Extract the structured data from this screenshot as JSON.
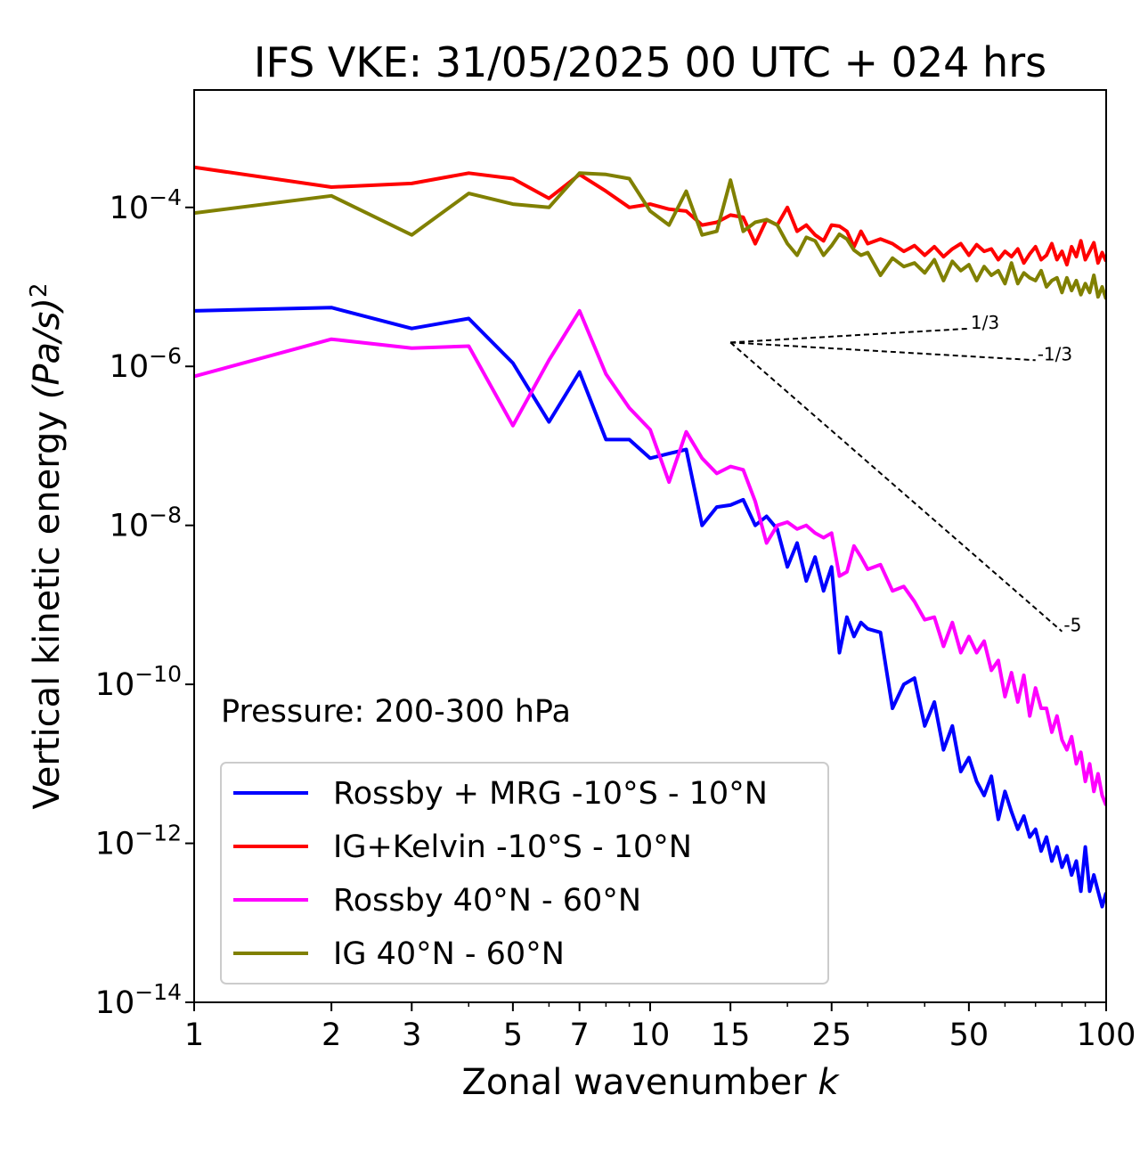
{
  "chart_data": {
    "type": "line",
    "title": "IFS VKE: 31/05/2025 00 UTC + 024 hrs",
    "xlabel": "Zonal wavenumber",
    "xlabel_italic": "k",
    "ylabel": "Vertical kinetic energy ",
    "ylabel_unit": "(Pa/s)",
    "ylabel_exp": "2",
    "x_scale": "log",
    "y_scale": "log",
    "xlim": [
      1,
      100
    ],
    "ylim": [
      1e-14,
      0.003
    ],
    "x_ticks": [
      1,
      2,
      3,
      5,
      7,
      10,
      15,
      25,
      50,
      100
    ],
    "y_ticks": [
      {
        "base": "10",
        "exp": "−14",
        "value": 1e-14
      },
      {
        "base": "10",
        "exp": "−12",
        "value": 1e-12
      },
      {
        "base": "10",
        "exp": "−10",
        "value": 1e-10
      },
      {
        "base": "10",
        "exp": "−8",
        "value": 1e-08
      },
      {
        "base": "10",
        "exp": "−6",
        "value": 1e-06
      },
      {
        "base": "10",
        "exp": "−4",
        "value": 0.0001
      }
    ],
    "annotation": "Pressure: 200-300 hPa",
    "legend_position": "lower-left",
    "grid": false,
    "reference_lines": [
      {
        "label": "1/3",
        "slope": 0.3333,
        "x_start": 15,
        "x_end": 50
      },
      {
        "label": "-1/3",
        "slope": -0.3333,
        "x_start": 15,
        "x_end": 70
      },
      {
        "label": "-5",
        "slope": -5,
        "x_start": 15,
        "x_end": 80
      }
    ],
    "reference_origin_y": 2e-06,
    "series": [
      {
        "name": "Rossby + MRG -10°S - 10°N",
        "color": "#0000ff",
        "x": [
          1,
          2,
          3,
          4,
          5,
          6,
          7,
          8,
          9,
          10,
          11,
          12,
          13,
          14,
          15,
          16,
          17,
          18,
          19,
          20,
          21,
          22,
          23,
          24,
          25,
          26,
          27,
          28,
          29,
          30,
          32,
          34,
          36,
          38,
          40,
          42,
          44,
          46,
          48,
          50,
          52,
          54,
          56,
          58,
          60,
          62,
          64,
          66,
          68,
          70,
          72,
          74,
          76,
          78,
          80,
          82,
          84,
          86,
          88,
          90,
          92,
          94,
          96,
          98,
          100
        ],
        "y": [
          5e-06,
          5.5e-06,
          3e-06,
          4e-06,
          1.1e-06,
          2e-07,
          8.5e-07,
          1.2e-07,
          1.2e-07,
          7e-08,
          8e-08,
          9e-08,
          1e-08,
          1.7e-08,
          1.8e-08,
          2.1e-08,
          1e-08,
          1.3e-08,
          9e-09,
          3e-09,
          6e-09,
          2e-09,
          4e-09,
          1.5e-09,
          3e-09,
          2.5e-10,
          7e-10,
          4e-10,
          6e-10,
          5e-10,
          4.5e-10,
          5e-11,
          1e-10,
          1.2e-10,
          3e-11,
          6e-11,
          1.5e-11,
          3e-11,
          8e-12,
          1.2e-11,
          6e-12,
          4e-12,
          7e-12,
          2e-12,
          4.5e-12,
          2.5e-12,
          1.5e-12,
          2.2e-12,
          1.2e-12,
          1.5e-12,
          8e-13,
          1.2e-12,
          6e-13,
          9e-13,
          5e-13,
          7e-13,
          4e-13,
          6e-13,
          2.5e-13,
          9e-13,
          2.5e-13,
          4e-13,
          2.5e-13,
          1.6e-13,
          2.4e-13
        ]
      },
      {
        "name": "IG+Kelvin -10°S - 10°N",
        "color": "#ff0000",
        "x": [
          1,
          2,
          3,
          4,
          5,
          6,
          7,
          8,
          9,
          10,
          11,
          12,
          13,
          14,
          15,
          16,
          17,
          18,
          19,
          20,
          21,
          22,
          23,
          24,
          25,
          26,
          27,
          28,
          29,
          30,
          32,
          34,
          36,
          38,
          40,
          42,
          44,
          46,
          48,
          50,
          52,
          54,
          56,
          58,
          60,
          62,
          64,
          66,
          68,
          70,
          72,
          74,
          76,
          78,
          80,
          82,
          84,
          86,
          88,
          90,
          92,
          94,
          96,
          98,
          100
        ],
        "y": [
          0.00032,
          0.00018,
          0.0002,
          0.00027,
          0.00023,
          0.00013,
          0.00026,
          0.00016,
          0.0001,
          0.00011,
          9.5e-05,
          9e-05,
          6e-05,
          6.5e-05,
          8e-05,
          7.5e-05,
          3.5e-05,
          7e-05,
          6e-05,
          0.0001,
          5e-05,
          6e-05,
          4.5e-05,
          3.8e-05,
          6e-05,
          5.8e-05,
          5e-05,
          3.2e-05,
          5e-05,
          3.5e-05,
          4e-05,
          3.5e-05,
          2.8e-05,
          3.3e-05,
          2.5e-05,
          3.2e-05,
          2.4e-05,
          3e-05,
          3.5e-05,
          2.5e-05,
          3.4e-05,
          2.8e-05,
          3e-05,
          2.2e-05,
          2.8e-05,
          2.4e-05,
          3e-05,
          2e-05,
          2.6e-05,
          3.2e-05,
          2.2e-05,
          2.5e-05,
          3.5e-05,
          2.2e-05,
          2.8e-05,
          1.9e-05,
          3.2e-05,
          2.4e-05,
          3.8e-05,
          2.2e-05,
          2.8e-05,
          3.6e-05,
          2e-05,
          2.7e-05,
          2.1e-05
        ]
      },
      {
        "name": "Rossby 40°N - 60°N",
        "color": "#ff00ff",
        "x": [
          1,
          2,
          3,
          4,
          5,
          6,
          7,
          8,
          9,
          10,
          11,
          12,
          13,
          14,
          15,
          16,
          17,
          18,
          19,
          20,
          21,
          22,
          23,
          24,
          25,
          26,
          27,
          28,
          29,
          30,
          32,
          34,
          36,
          38,
          40,
          42,
          44,
          46,
          48,
          50,
          52,
          54,
          56,
          58,
          60,
          62,
          64,
          66,
          68,
          70,
          72,
          74,
          76,
          78,
          80,
          82,
          84,
          86,
          88,
          90,
          92,
          94,
          96,
          98,
          100
        ],
        "y": [
          7.5e-07,
          2.2e-06,
          1.7e-06,
          1.8e-06,
          1.8e-07,
          1.2e-06,
          5e-06,
          8e-07,
          3e-07,
          1.6e-07,
          3.5e-08,
          1.5e-07,
          7e-08,
          4.5e-08,
          5.5e-08,
          5e-08,
          2e-08,
          6e-09,
          1e-08,
          1.1e-08,
          9e-09,
          1e-08,
          8e-09,
          7e-09,
          8e-09,
          2.3e-09,
          2.6e-09,
          5.5e-09,
          4e-09,
          2.8e-09,
          3.2e-09,
          1.5e-09,
          1.7e-09,
          1.1e-09,
          6.5e-10,
          7e-10,
          3e-10,
          6e-10,
          2.5e-10,
          4e-10,
          2.5e-10,
          3.5e-10,
          1.5e-10,
          2e-10,
          7e-11,
          1.4e-10,
          6e-11,
          1.3e-10,
          4e-11,
          9e-11,
          5e-11,
          5e-11,
          2.5e-11,
          4e-11,
          2e-11,
          1.5e-11,
          2.2e-11,
          1e-11,
          1.4e-11,
          6e-12,
          1e-11,
          4.5e-12,
          7.5e-12,
          4e-12,
          3e-12
        ]
      },
      {
        "name": "IG 40°N - 60°N",
        "color": "#808000",
        "x": [
          1,
          2,
          3,
          4,
          5,
          6,
          7,
          8,
          9,
          10,
          11,
          12,
          13,
          14,
          15,
          16,
          17,
          18,
          19,
          20,
          21,
          22,
          23,
          24,
          25,
          26,
          27,
          28,
          29,
          30,
          32,
          34,
          36,
          38,
          40,
          42,
          44,
          46,
          48,
          50,
          52,
          54,
          56,
          58,
          60,
          62,
          64,
          66,
          68,
          70,
          72,
          74,
          76,
          78,
          80,
          82,
          84,
          86,
          88,
          90,
          92,
          94,
          96,
          98,
          100
        ],
        "y": [
          8.5e-05,
          0.00014,
          4.5e-05,
          0.00015,
          0.00011,
          0.0001,
          0.00027,
          0.00026,
          0.00023,
          9e-05,
          6e-05,
          0.00016,
          4.5e-05,
          5e-05,
          0.00022,
          5e-05,
          6.5e-05,
          7e-05,
          6e-05,
          3.5e-05,
          2.5e-05,
          4.2e-05,
          3.8e-05,
          2.5e-05,
          3.3e-05,
          4.6e-05,
          4e-05,
          2.9e-05,
          2.5e-05,
          2.7e-05,
          1.4e-05,
          2.3e-05,
          1.8e-05,
          2e-05,
          1.5e-05,
          2.2e-05,
          1.2e-05,
          2.1e-05,
          1.6e-05,
          1.9e-05,
          1.2e-05,
          1.8e-05,
          1.4e-05,
          1.6e-05,
          1.1e-05,
          2e-05,
          1.1e-05,
          1.5e-05,
          1.3e-05,
          1.2e-05,
          1.6e-05,
          1e-05,
          1.2e-05,
          1.3e-05,
          8.5e-06,
          1.3e-05,
          9e-06,
          1.2e-05,
          8e-06,
          1.1e-05,
          8.5e-06,
          1.4e-05,
          7.5e-06,
          1e-05,
          7e-06
        ]
      }
    ]
  }
}
